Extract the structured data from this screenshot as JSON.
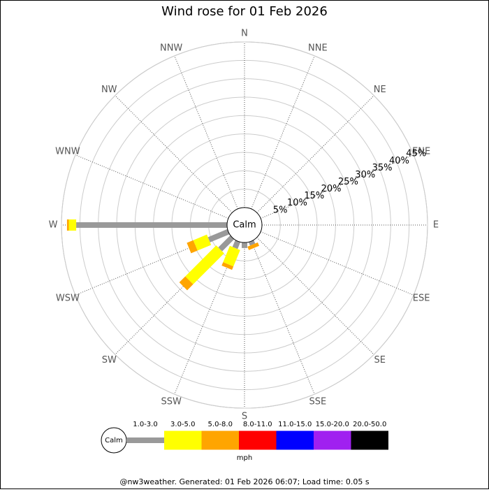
{
  "chart_data": {
    "type": "windrose",
    "title": "Wind rose for 01 Feb 2026",
    "categories": [
      "N",
      "NNE",
      "NE",
      "ENE",
      "E",
      "ESE",
      "SE",
      "SSE",
      "S",
      "SSW",
      "SW",
      "WSW",
      "W",
      "WNW",
      "NW",
      "NNW"
    ],
    "series": [
      {
        "name": "1.0-3.0",
        "color": "#999999",
        "values": [
          0,
          0,
          0,
          0,
          0,
          0,
          0,
          1,
          1.5,
          2,
          4.6,
          5.7,
          41,
          0,
          0,
          0
        ]
      },
      {
        "name": "3.0-5.0",
        "color": "#ffff00",
        "values": [
          0,
          0,
          0,
          0,
          0,
          0,
          0,
          0,
          0,
          4.8,
          11.9,
          4,
          2,
          0,
          0,
          0
        ]
      },
      {
        "name": "5.0-8.0",
        "color": "#ffa500",
        "values": [
          0,
          0,
          0,
          0,
          0,
          0,
          0,
          1,
          0,
          1,
          2.3,
          1.9,
          0.5,
          0,
          0,
          0
        ]
      },
      {
        "name": "8.0-11.0",
        "color": "#ff0000",
        "values": [
          0,
          0,
          0,
          0,
          0,
          0,
          0,
          0,
          0,
          0,
          0,
          0,
          0,
          0,
          0,
          0
        ]
      },
      {
        "name": "11.0-15.0",
        "color": "#0000ff",
        "values": [
          0,
          0,
          0,
          0,
          0,
          0,
          0,
          0,
          0,
          0,
          0,
          0,
          0,
          0,
          0,
          0
        ]
      },
      {
        "name": "15.0-20.0",
        "color": "#a020f0",
        "values": [
          0,
          0,
          0,
          0,
          0,
          0,
          0,
          0,
          0,
          0,
          0,
          0,
          0,
          0,
          0,
          0
        ]
      },
      {
        "name": "20.0-50.0",
        "color": "#000000",
        "values": [
          0,
          0,
          0,
          0,
          0,
          0,
          0,
          0,
          0,
          0,
          0,
          0,
          0,
          0,
          0,
          0
        ]
      }
    ],
    "rlim": [
      0,
      45
    ],
    "rticks": [
      {
        "value": 5,
        "label": "5%"
      },
      {
        "value": 10,
        "label": "10%"
      },
      {
        "value": 15,
        "label": "15%"
      },
      {
        "value": 20,
        "label": "20%"
      },
      {
        "value": 25,
        "label": "25%"
      },
      {
        "value": 30,
        "label": "30%"
      },
      {
        "value": 35,
        "label": "35%"
      },
      {
        "value": 40,
        "label": "40%"
      },
      {
        "value": 45,
        "label": "45%"
      }
    ],
    "calm_label": "Calm",
    "legend_unit": "mph",
    "footer": "@nw3weather. Generated: 01 Feb 2026 06:07; Load time: 0.05 s"
  }
}
